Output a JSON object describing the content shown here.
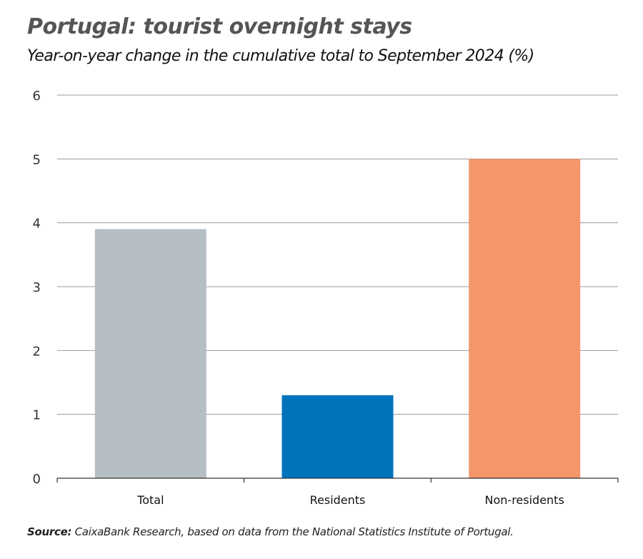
{
  "chart_data": {
    "type": "bar",
    "title": "Portugal: tourist overnight stays",
    "subtitle": "Year-on-year change in the cumulative total to September 2024 (%)",
    "categories": [
      "Total",
      "Residents",
      "Non-residents"
    ],
    "values": [
      3.9,
      1.3,
      5.0
    ],
    "colors": [
      "#b4bec3",
      "#0073bd",
      "#f3976b"
    ],
    "ylim": [
      0,
      6
    ],
    "yticks": [
      0,
      1,
      2,
      3,
      4,
      5,
      6
    ],
    "grid": true,
    "xlabel": "",
    "ylabel": ""
  },
  "source": {
    "label": "Source:",
    "text": " CaixaBank Research, based on data from the National Statistics Institute of Portugal."
  }
}
